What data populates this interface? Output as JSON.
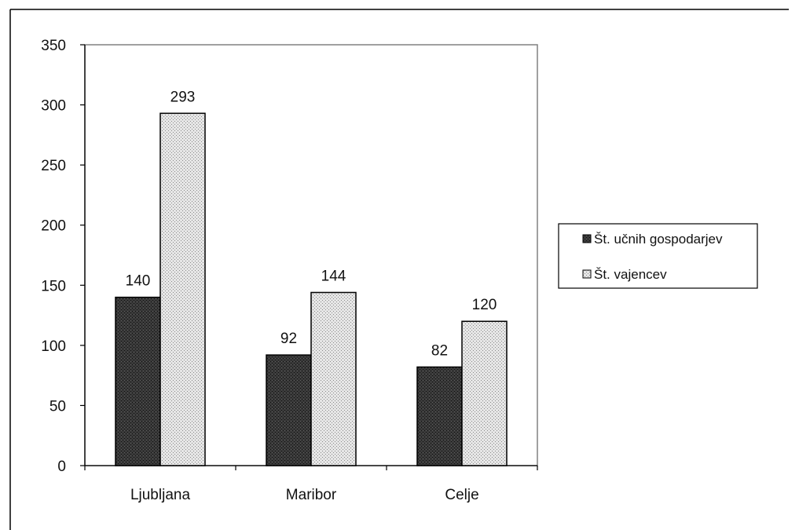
{
  "chart_data": {
    "type": "bar",
    "categories": [
      "Ljubljana",
      "Maribor",
      "Celje"
    ],
    "series": [
      {
        "name": "Št. učnih gospodarjev",
        "values": [
          140,
          92,
          82
        ],
        "color": "#2b2b2b",
        "pattern": "dark-dots"
      },
      {
        "name": "Št. vajencev",
        "values": [
          293,
          144,
          120
        ],
        "color": "#d9d9d9",
        "pattern": "light-dots"
      }
    ],
    "ylim": [
      0,
      350
    ],
    "yticks": [
      0,
      50,
      100,
      150,
      200,
      250,
      300,
      350
    ],
    "grid": false,
    "legend_position": "right",
    "data_labels": true,
    "title": "",
    "xlabel": "",
    "ylabel": ""
  }
}
